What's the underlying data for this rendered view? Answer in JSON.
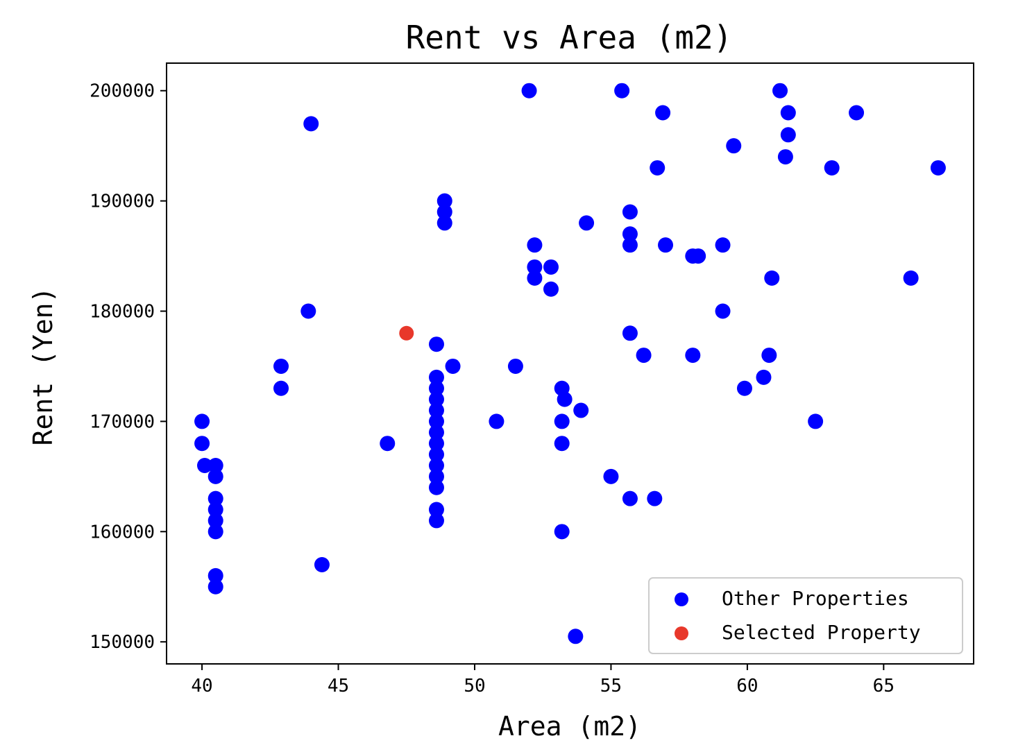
{
  "chart_data": {
    "type": "scatter",
    "title": "Rent vs Area (m2)",
    "xlabel": "Area (m2)",
    "ylabel": "Rent (Yen)",
    "xlim": [
      38.7,
      68.3
    ],
    "ylim": [
      148000,
      202500
    ],
    "x_ticks": [
      40,
      45,
      50,
      55,
      60,
      65
    ],
    "y_ticks": [
      150000,
      160000,
      170000,
      180000,
      190000,
      200000
    ],
    "grid": false,
    "legend_position": "lower-right",
    "series": [
      {
        "name": "Other Properties",
        "color": "#0000ff",
        "points": [
          [
            40.0,
            170000
          ],
          [
            40.0,
            168000
          ],
          [
            40.1,
            166000
          ],
          [
            40.5,
            166000
          ],
          [
            40.5,
            165000
          ],
          [
            40.5,
            163000
          ],
          [
            40.5,
            162000
          ],
          [
            40.5,
            161000
          ],
          [
            40.5,
            160000
          ],
          [
            40.5,
            156000
          ],
          [
            40.5,
            155000
          ],
          [
            42.9,
            175000
          ],
          [
            42.9,
            173000
          ],
          [
            43.9,
            180000
          ],
          [
            44.0,
            197000
          ],
          [
            44.4,
            157000
          ],
          [
            46.8,
            168000
          ],
          [
            48.6,
            177000
          ],
          [
            48.6,
            174000
          ],
          [
            48.6,
            173000
          ],
          [
            48.6,
            172000
          ],
          [
            48.6,
            171000
          ],
          [
            48.6,
            170000
          ],
          [
            48.6,
            169000
          ],
          [
            48.6,
            168000
          ],
          [
            48.6,
            167000
          ],
          [
            48.6,
            166000
          ],
          [
            48.6,
            165000
          ],
          [
            48.6,
            164000
          ],
          [
            48.6,
            162000
          ],
          [
            48.6,
            161000
          ],
          [
            48.9,
            190000
          ],
          [
            48.9,
            189000
          ],
          [
            48.9,
            188000
          ],
          [
            49.2,
            175000
          ],
          [
            50.8,
            170000
          ],
          [
            51.5,
            175000
          ],
          [
            52.0,
            200000
          ],
          [
            52.2,
            186000
          ],
          [
            52.2,
            184000
          ],
          [
            52.2,
            183000
          ],
          [
            52.8,
            184000
          ],
          [
            52.8,
            182000
          ],
          [
            53.2,
            173000
          ],
          [
            53.3,
            172000
          ],
          [
            53.2,
            170000
          ],
          [
            53.2,
            168000
          ],
          [
            53.2,
            160000
          ],
          [
            53.7,
            150500
          ],
          [
            53.9,
            171000
          ],
          [
            54.1,
            188000
          ],
          [
            55.0,
            165000
          ],
          [
            55.4,
            200000
          ],
          [
            55.7,
            189000
          ],
          [
            55.7,
            187000
          ],
          [
            55.7,
            186000
          ],
          [
            55.7,
            178000
          ],
          [
            55.7,
            163000
          ],
          [
            56.2,
            176000
          ],
          [
            56.6,
            163000
          ],
          [
            56.7,
            193000
          ],
          [
            56.9,
            198000
          ],
          [
            57.0,
            186000
          ],
          [
            58.0,
            185000
          ],
          [
            58.2,
            185000
          ],
          [
            58.0,
            176000
          ],
          [
            59.1,
            186000
          ],
          [
            59.1,
            180000
          ],
          [
            59.5,
            195000
          ],
          [
            59.9,
            173000
          ],
          [
            60.6,
            174000
          ],
          [
            60.8,
            176000
          ],
          [
            60.9,
            183000
          ],
          [
            61.2,
            200000
          ],
          [
            61.5,
            198000
          ],
          [
            61.5,
            196000
          ],
          [
            61.4,
            194000
          ],
          [
            62.5,
            170000
          ],
          [
            63.1,
            193000
          ],
          [
            64.0,
            198000
          ],
          [
            66.0,
            183000
          ],
          [
            67.0,
            193000
          ]
        ]
      },
      {
        "name": "Selected Property",
        "color": "#e8382b",
        "points": [
          [
            47.5,
            178000
          ]
        ]
      }
    ]
  }
}
